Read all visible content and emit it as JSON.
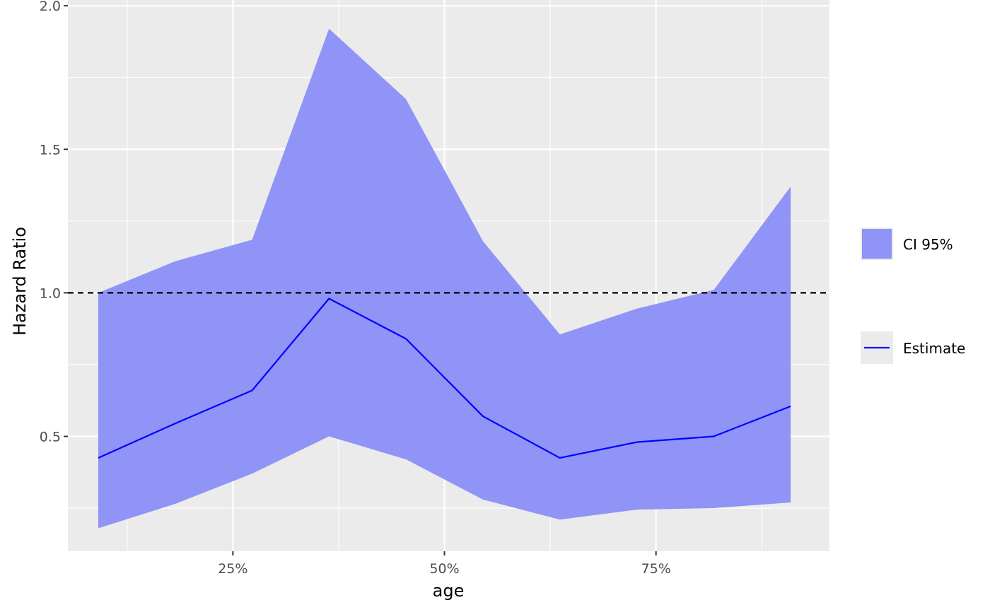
{
  "chart_data": {
    "type": "area",
    "xlabel": "age",
    "ylabel": "Hazard Ratio",
    "xlim": [
      0.055,
      0.955
    ],
    "ylim": [
      0.1,
      2.02
    ],
    "x_ticks": [
      0.25,
      0.5,
      0.75
    ],
    "x_tick_labels": [
      "25%",
      "50%",
      "75%"
    ],
    "x_minor_gridlines": [
      0.125,
      0.375,
      0.625,
      0.875
    ],
    "y_ticks": [
      0.5,
      1.0,
      1.5,
      2.0
    ],
    "y_tick_labels": [
      "0.5",
      "1.0",
      "1.5",
      "2.0"
    ],
    "y_minor_gridlines": [
      0.25,
      0.75,
      1.25,
      1.75
    ],
    "grid": true,
    "reference_line": {
      "y": 1.0,
      "style": "dashed",
      "color": "#000000"
    },
    "x": [
      0.0909,
      0.1818,
      0.2727,
      0.3636,
      0.4545,
      0.5455,
      0.6364,
      0.7273,
      0.8182,
      0.9091
    ],
    "series": [
      {
        "name": "Estimate",
        "kind": "line",
        "color": "#0000ff",
        "values": [
          0.425,
          0.545,
          0.66,
          0.98,
          0.84,
          0.57,
          0.425,
          0.48,
          0.5,
          0.605
        ]
      },
      {
        "name": "CI 95%",
        "kind": "ribbon",
        "color": "#8f94f6",
        "lower": [
          0.18,
          0.265,
          0.37,
          0.5,
          0.42,
          0.28,
          0.21,
          0.245,
          0.25,
          0.27
        ],
        "upper": [
          1.0,
          1.11,
          1.185,
          1.92,
          1.675,
          1.18,
          0.855,
          0.945,
          1.01,
          1.37
        ]
      }
    ],
    "legend": {
      "position": "right",
      "entries": [
        {
          "label": "CI 95%",
          "swatch": "fill",
          "color": "#8f94f6"
        },
        {
          "label": "Estimate",
          "swatch": "line",
          "color": "#0000ff"
        }
      ]
    },
    "colors": {
      "panel_background": "#ebebeb",
      "gridline": "#ffffff",
      "legend_key_background": "#ebebeb"
    }
  }
}
